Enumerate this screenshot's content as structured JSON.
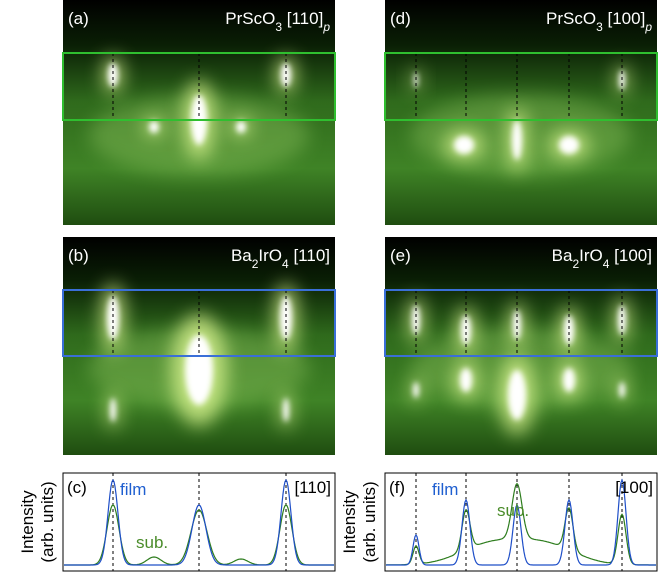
{
  "panels": [
    {
      "label": "(a)",
      "title": [
        {
          "text": "PrScO"
        },
        {
          "text": "3",
          "sub": true
        },
        {
          "text": " [110]"
        },
        {
          "text": "p",
          "sub": true,
          "italic": true
        }
      ]
    },
    {
      "label": "(b)",
      "title": [
        {
          "text": "Ba"
        },
        {
          "text": "2",
          "sub": true
        },
        {
          "text": "IrO"
        },
        {
          "text": "4",
          "sub": true
        },
        {
          "text": " [110]"
        }
      ]
    },
    {
      "label": "(d)",
      "title": [
        {
          "text": "PrScO"
        },
        {
          "text": "3",
          "sub": true
        },
        {
          "text": " [100]"
        },
        {
          "text": "p",
          "sub": true,
          "italic": true
        }
      ]
    },
    {
      "label": "(e)",
      "title": [
        {
          "text": "Ba"
        },
        {
          "text": "2",
          "sub": true
        },
        {
          "text": "IrO"
        },
        {
          "text": "4",
          "sub": true
        },
        {
          "text": " [100]"
        }
      ]
    }
  ],
  "profiles": [
    {
      "label": "(c)",
      "ylabel": [
        "Intensity",
        "(arb. units)"
      ],
      "film": "film",
      "sub": "sub.",
      "direction": "[110]"
    },
    {
      "label": "(f)",
      "ylabel": [
        "Intensity",
        "(arb. units)"
      ],
      "film": "film",
      "sub": "sub.",
      "direction": "[100]"
    }
  ]
}
